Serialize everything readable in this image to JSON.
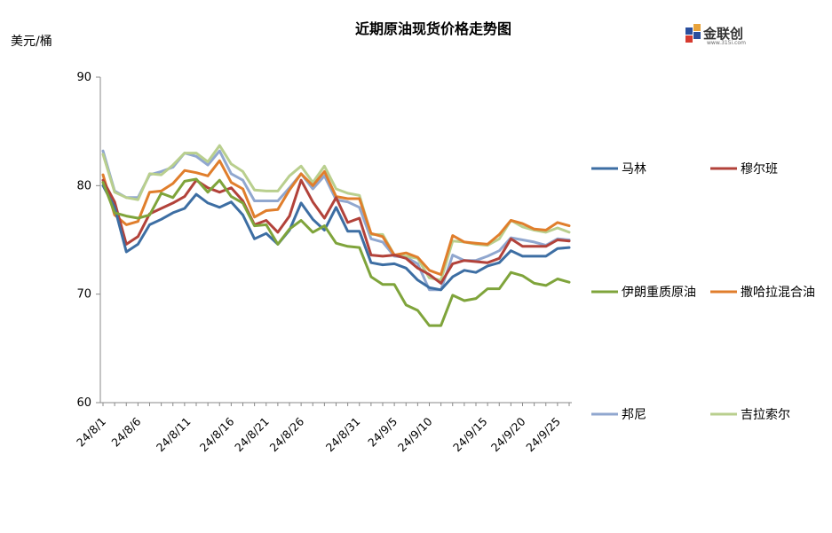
{
  "chart_data": {
    "type": "line",
    "title": "近期原油现货价格走势图",
    "ylabel": "美元/桶",
    "ylim": [
      60,
      90
    ],
    "yticks": [
      60,
      70,
      80,
      90
    ],
    "x": [
      "24/8/1",
      "24/8/2",
      "24/8/5",
      "24/8/6",
      "24/8/7",
      "24/8/8",
      "24/8/9",
      "24/8/12",
      "24/8/13",
      "24/8/14",
      "24/8/15",
      "24/8/16",
      "24/8/19",
      "24/8/20",
      "24/8/21",
      "24/8/22",
      "24/8/23",
      "24/8/26",
      "24/8/27",
      "24/8/28",
      "24/8/29",
      "24/8/30",
      "24/9/2",
      "24/9/3",
      "24/9/4",
      "24/9/5",
      "24/9/6",
      "24/9/9",
      "24/9/10",
      "24/9/11",
      "24/9/12",
      "24/9/13",
      "24/9/16",
      "24/9/17",
      "24/9/18",
      "24/9/19",
      "24/9/20",
      "24/9/23",
      "24/9/24",
      "24/9/25",
      "24/9/26"
    ],
    "tick_labels": [
      "24/8/1",
      "24/8/6",
      "24/8/11",
      "24/8/16",
      "24/8/21",
      "24/8/26",
      "24/8/31",
      "24/9/5",
      "24/9/10",
      "24/9/15",
      "24/9/20",
      "24/9/25"
    ],
    "series": [
      {
        "name": "马林",
        "color": "#3d6ea3",
        "values": [
          80.0,
          78.0,
          73.9,
          74.6,
          76.4,
          76.9,
          77.5,
          77.9,
          79.2,
          78.4,
          78.0,
          78.5,
          77.3,
          75.1,
          75.6,
          74.6,
          75.9,
          78.4,
          76.9,
          75.9,
          78.0,
          75.8,
          75.8,
          72.9,
          72.7,
          72.8,
          72.4,
          71.3,
          70.6,
          70.4,
          71.6,
          72.2,
          72.0,
          72.6,
          72.9,
          74.0,
          73.5,
          73.5,
          73.5,
          74.2,
          74.3
        ]
      },
      {
        "name": "穆尔班",
        "color": "#b2423a",
        "values": [
          80.5,
          78.5,
          74.6,
          75.3,
          77.4,
          77.9,
          78.4,
          79.0,
          80.5,
          79.8,
          79.4,
          79.8,
          78.6,
          76.4,
          76.8,
          75.7,
          77.2,
          80.5,
          78.5,
          77.0,
          78.9,
          76.6,
          77.0,
          73.6,
          73.5,
          73.6,
          73.3,
          72.4,
          71.8,
          71.0,
          72.8,
          73.1,
          73.0,
          72.9,
          73.3,
          75.1,
          74.4,
          74.4,
          74.4,
          75.0,
          74.9
        ]
      },
      {
        "name": "伊朗重质原油",
        "color": "#7fa43b",
        "values": [
          80.3,
          77.5,
          77.2,
          77.0,
          77.3,
          79.3,
          78.9,
          80.4,
          80.6,
          79.4,
          80.5,
          79.0,
          78.4,
          76.3,
          76.4,
          74.6,
          76.0,
          76.8,
          75.7,
          76.3,
          74.7,
          74.4,
          74.3,
          71.6,
          70.9,
          70.9,
          69.0,
          68.5,
          67.1,
          67.1,
          69.9,
          69.4,
          69.6,
          70.5,
          70.5,
          72.0,
          71.7,
          71.0,
          70.8,
          71.4,
          71.1
        ]
      },
      {
        "name": "撒哈拉混合油",
        "color": "#e07e2c",
        "values": [
          81.0,
          77.3,
          76.4,
          76.7,
          79.4,
          79.5,
          80.2,
          81.4,
          81.2,
          80.9,
          82.3,
          80.3,
          79.7,
          77.1,
          77.7,
          77.8,
          79.6,
          81.1,
          80.0,
          81.3,
          79.0,
          78.8,
          78.8,
          75.6,
          75.3,
          73.6,
          73.8,
          73.4,
          72.2,
          71.8,
          75.4,
          74.8,
          74.7,
          74.6,
          75.5,
          76.8,
          76.5,
          76.0,
          75.9,
          76.6,
          76.3
        ]
      },
      {
        "name": "邦尼",
        "color": "#90a7cf",
        "values": [
          83.2,
          79.5,
          78.9,
          78.9,
          81.0,
          81.3,
          81.7,
          83.0,
          82.7,
          81.9,
          83.2,
          81.1,
          80.5,
          78.6,
          78.6,
          78.6,
          79.8,
          81.1,
          79.7,
          80.9,
          78.7,
          78.5,
          78.0,
          75.1,
          74.8,
          73.5,
          73.4,
          72.8,
          70.4,
          70.4,
          73.6,
          73.1,
          73.1,
          73.5,
          74.0,
          75.2,
          75.0,
          74.8,
          74.5,
          75.1,
          75.0
        ]
      },
      {
        "name": "吉拉索尔",
        "color": "#b9cf8e",
        "values": [
          82.9,
          79.4,
          78.9,
          78.7,
          81.1,
          81.0,
          81.9,
          83.0,
          83.0,
          82.2,
          83.7,
          82.0,
          81.3,
          79.6,
          79.5,
          79.5,
          80.9,
          81.8,
          80.3,
          81.8,
          79.7,
          79.3,
          79.1,
          75.5,
          75.5,
          73.6,
          73.5,
          73.3,
          71.5,
          71.3,
          74.9,
          74.8,
          74.6,
          74.5,
          75.1,
          76.8,
          76.2,
          75.9,
          75.7,
          76.1,
          75.7
        ]
      }
    ],
    "grid": false,
    "legend": "right"
  },
  "logo": {
    "name": "金联创",
    "sub": "www.315i.com"
  }
}
